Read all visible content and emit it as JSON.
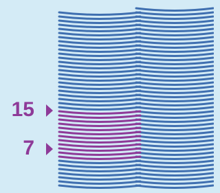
{
  "labels": [
    "15",
    "7"
  ]
}
